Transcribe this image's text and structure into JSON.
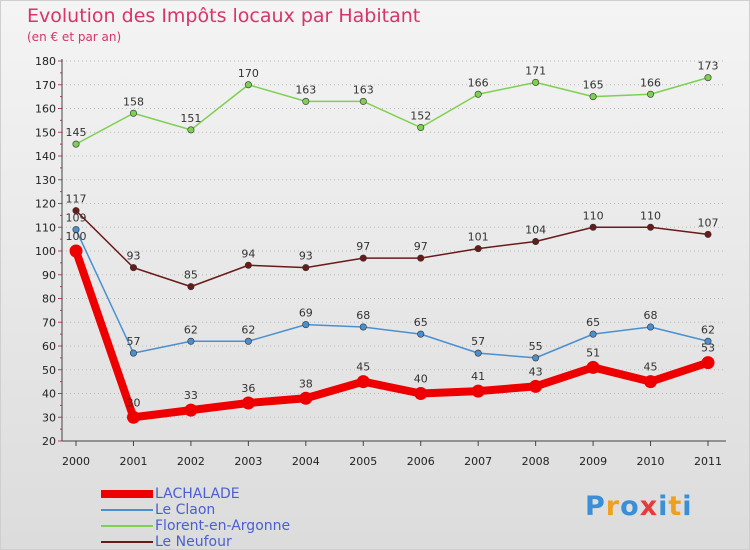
{
  "header": {
    "title": "Evolution des Impôts locaux par Habitant",
    "subtitle": "(en € et par an)"
  },
  "colors": {
    "title": "#d8336b",
    "legend_text": "#4a5fd0",
    "grid": "#bbbbbb"
  },
  "logo": {
    "letters": [
      "P",
      "r",
      "o",
      "x",
      "i",
      "t",
      "i"
    ],
    "colors": [
      "#3a8fd8",
      "#f0a020",
      "#3a8fd8",
      "#e83a3a",
      "#3a8fd8",
      "#f0a020",
      "#3a8fd8"
    ]
  },
  "chart_data": {
    "type": "line",
    "title": "Evolution des Impôts locaux par Habitant",
    "subtitle": "(en € et par an)",
    "xlabel": "",
    "ylabel": "",
    "ylim": [
      20,
      180
    ],
    "ytick_step": 10,
    "grid": true,
    "legend_position": "bottom-left",
    "categories": [
      "2000",
      "2001",
      "2002",
      "2003",
      "2004",
      "2005",
      "2006",
      "2007",
      "2008",
      "2009",
      "2010",
      "2011"
    ],
    "series": [
      {
        "name": "LACHALADE",
        "color": "#ee0000",
        "bold": true,
        "values": [
          100,
          30,
          33,
          36,
          38,
          45,
          40,
          41,
          43,
          51,
          45,
          53
        ]
      },
      {
        "name": "Le Claon",
        "color": "#4a90d0",
        "bold": false,
        "values": [
          109,
          57,
          62,
          62,
          69,
          68,
          65,
          57,
          55,
          65,
          68,
          62
        ]
      },
      {
        "name": "Florent-en-Argonne",
        "color": "#7ed050",
        "bold": false,
        "values": [
          145,
          158,
          151,
          170,
          163,
          163,
          152,
          166,
          171,
          165,
          166,
          173
        ]
      },
      {
        "name": "Le Neufour",
        "color": "#6b1a1a",
        "bold": false,
        "values": [
          117,
          93,
          85,
          94,
          93,
          97,
          97,
          101,
          104,
          110,
          110,
          107
        ]
      }
    ]
  }
}
